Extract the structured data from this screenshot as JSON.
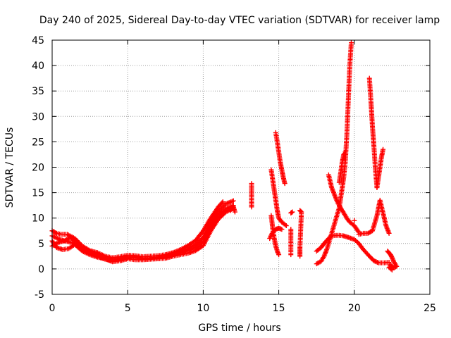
{
  "chart_data": {
    "type": "scatter",
    "title": "Day 240 of 2025, Sidereal Day-to-day VTEC variation (SDTVAR) for receiver lamp",
    "xlabel": "GPS time / hours",
    "ylabel": "SDTVAR / TECUs",
    "xlim": [
      0,
      25
    ],
    "ylim": [
      -5,
      45
    ],
    "xticks": [
      0,
      5,
      10,
      15,
      20,
      25
    ],
    "yticks": [
      -5,
      0,
      5,
      10,
      15,
      20,
      25,
      30,
      35,
      40,
      45
    ],
    "grid": true,
    "marker": "+",
    "series": [
      {
        "name": "SDTVAR",
        "color": "#ff0000",
        "segments": [
          [
            [
              0,
              7.5
            ],
            [
              0.3,
              7
            ],
            [
              0.6,
              6.8
            ],
            [
              1,
              6.8
            ],
            [
              1.5,
              6
            ],
            [
              2,
              4.5
            ],
            [
              2.5,
              3.6
            ],
            [
              3,
              3.2
            ],
            [
              3.5,
              2.5
            ],
            [
              4,
              2.2
            ],
            [
              4.5,
              2.4
            ],
            [
              5,
              2.7
            ],
            [
              5.5,
              2.6
            ],
            [
              6,
              2.4
            ],
            [
              6.5,
              2.5
            ],
            [
              7,
              2.6
            ],
            [
              7.5,
              2.8
            ],
            [
              8,
              3.2
            ],
            [
              8.5,
              3.8
            ],
            [
              9,
              4.6
            ],
            [
              9.5,
              5.6
            ],
            [
              10,
              7.5
            ],
            [
              10.5,
              10
            ],
            [
              11,
              12.2
            ],
            [
              11.3,
              13.2
            ]
          ],
          [
            [
              0,
              4.5
            ],
            [
              0.4,
              5.2
            ],
            [
              0.8,
              5.5
            ],
            [
              1.2,
              6.2
            ],
            [
              1.6,
              5.3
            ],
            [
              2,
              4
            ],
            [
              2.5,
              3.2
            ],
            [
              3,
              2.5
            ],
            [
              3.5,
              1.9
            ],
            [
              4,
              1.6
            ],
            [
              4.5,
              1.9
            ],
            [
              5,
              2.2
            ],
            [
              5.5,
              2.2
            ],
            [
              6,
              1.9
            ],
            [
              6.5,
              2
            ],
            [
              7,
              2.1
            ],
            [
              7.5,
              2.3
            ],
            [
              8,
              2.8
            ],
            [
              8.5,
              3.2
            ],
            [
              9,
              3.6
            ],
            [
              9.5,
              4.2
            ],
            [
              10,
              5.5
            ],
            [
              10.5,
              8.5
            ],
            [
              11,
              10.6
            ],
            [
              11.5,
              11.8
            ],
            [
              12,
              12.5
            ]
          ],
          [
            [
              0,
              5.5
            ],
            [
              0.3,
              4.2
            ],
            [
              0.7,
              3.8
            ],
            [
              1.1,
              4
            ],
            [
              1.5,
              4.8
            ],
            [
              2,
              3.5
            ],
            [
              2.5,
              2.8
            ],
            [
              3,
              2.3
            ],
            [
              3.5,
              2
            ],
            [
              4,
              1.4
            ],
            [
              4.5,
              1.6
            ],
            [
              5,
              2
            ],
            [
              5.5,
              1.8
            ],
            [
              6,
              1.8
            ],
            [
              6.5,
              1.9
            ],
            [
              7,
              2
            ],
            [
              7.5,
              2.1
            ],
            [
              8,
              2.5
            ],
            [
              8.5,
              2.8
            ],
            [
              9,
              3.1
            ],
            [
              9.5,
              3.6
            ],
            [
              10,
              4.6
            ],
            [
              10.5,
              7.5
            ],
            [
              11,
              9.8
            ],
            [
              11.5,
              11.2
            ],
            [
              12,
              12
            ]
          ],
          [
            [
              0,
              6.5
            ],
            [
              0.5,
              5.8
            ],
            [
              1,
              5.4
            ],
            [
              1.5,
              5
            ],
            [
              2,
              4.2
            ],
            [
              2.5,
              3.4
            ],
            [
              3,
              2.8
            ],
            [
              3.5,
              2.3
            ],
            [
              4,
              1.9
            ],
            [
              4.5,
              2.1
            ],
            [
              5,
              2.4
            ],
            [
              5.5,
              2.4
            ],
            [
              6,
              2.1
            ],
            [
              6.5,
              2.2
            ],
            [
              7,
              2.3
            ],
            [
              7.5,
              2.5
            ],
            [
              8,
              2.9
            ],
            [
              8.5,
              3.4
            ],
            [
              9,
              4
            ],
            [
              9.5,
              4.8
            ],
            [
              10,
              6.2
            ],
            [
              10.5,
              9
            ],
            [
              11,
              11.3
            ],
            [
              11.5,
              12.8
            ],
            [
              12,
              13.4
            ]
          ],
          [
            [
              11.8,
              11.5
            ],
            [
              12,
              12.2
            ],
            [
              12.1,
              11.2
            ]
          ],
          [
            [
              13.2,
              16.8
            ],
            [
              13.2,
              16.5
            ],
            [
              13.2,
              14.5
            ],
            [
              13.2,
              12.2
            ],
            [
              13.2,
              12.5
            ]
          ],
          [
            [
              14.5,
              19.5
            ],
            [
              14.6,
              17.5
            ],
            [
              14.7,
              15.5
            ],
            [
              14.8,
              13.5
            ],
            [
              14.9,
              11.5
            ],
            [
              15,
              10
            ],
            [
              15.2,
              9.2
            ],
            [
              15.5,
              8.5
            ]
          ],
          [
            [
              14.8,
              26.8
            ],
            [
              14.9,
              25
            ],
            [
              15,
              23
            ],
            [
              15.1,
              21
            ],
            [
              15.2,
              19.5
            ],
            [
              15.3,
              18
            ],
            [
              15.4,
              16.8
            ]
          ],
          [
            [
              14.5,
              10.5
            ],
            [
              14.6,
              8
            ],
            [
              14.7,
              6
            ],
            [
              14.8,
              4.5
            ],
            [
              14.9,
              3.5
            ],
            [
              15,
              2.8
            ]
          ],
          [
            [
              14.4,
              6
            ],
            [
              14.6,
              7.2
            ],
            [
              14.8,
              7.8
            ],
            [
              15,
              8
            ],
            [
              15.2,
              7.8
            ]
          ],
          [
            [
              15.8,
              11
            ],
            [
              15.9,
              11.2
            ]
          ],
          [
            [
              15.8,
              7.8
            ],
            [
              15.8,
              5.8
            ],
            [
              15.8,
              2.8
            ]
          ],
          [
            [
              16.4,
              11.5
            ],
            [
              16.5,
              11.2
            ],
            [
              16.4,
              4.2
            ],
            [
              16.4,
              3.2
            ],
            [
              16.4,
              2.5
            ]
          ],
          [
            [
              17.5,
              3.5
            ],
            [
              17.8,
              4.2
            ],
            [
              18,
              5
            ],
            [
              18.3,
              6
            ],
            [
              18.5,
              6.5
            ],
            [
              18.8,
              6.6
            ],
            [
              19,
              6.6
            ],
            [
              19.3,
              6.5
            ],
            [
              19.6,
              6.2
            ],
            [
              20,
              5.8
            ],
            [
              20.3,
              5
            ],
            [
              20.6,
              3.8
            ],
            [
              21,
              2.5
            ],
            [
              21.3,
              1.6
            ],
            [
              21.6,
              1.2
            ],
            [
              22,
              1.2
            ],
            [
              22.3,
              1.3
            ]
          ],
          [
            [
              17.5,
              1
            ],
            [
              17.8,
              1.5
            ],
            [
              18,
              2.5
            ],
            [
              18.2,
              4
            ],
            [
              18.4,
              6
            ],
            [
              18.6,
              8
            ],
            [
              18.8,
              10
            ],
            [
              19,
              12
            ],
            [
              19.1,
              14
            ],
            [
              19.2,
              16
            ],
            [
              19.3,
              18
            ],
            [
              19.4,
              21
            ],
            [
              19.5,
              26
            ],
            [
              19.6,
              33
            ],
            [
              19.7,
              40
            ],
            [
              19.8,
              44.5
            ]
          ],
          [
            [
              18.3,
              18.5
            ],
            [
              18.5,
              16
            ],
            [
              18.7,
              14.5
            ],
            [
              18.9,
              13
            ],
            [
              19.1,
              12
            ],
            [
              19.3,
              11
            ],
            [
              19.5,
              10
            ],
            [
              19.7,
              9.2
            ],
            [
              20,
              8.5
            ],
            [
              20.3,
              7.2
            ]
          ],
          [
            [
              19,
              17
            ],
            [
              19.1,
              19
            ],
            [
              19.2,
              21
            ],
            [
              19.3,
              22.5
            ],
            [
              19.4,
              23
            ]
          ],
          [
            [
              20.3,
              6.8
            ],
            [
              20.6,
              7
            ],
            [
              20.9,
              7
            ],
            [
              21.2,
              7.5
            ],
            [
              21.5,
              10.5
            ],
            [
              21.7,
              13.5
            ],
            [
              21.9,
              11
            ],
            [
              22.1,
              8.5
            ],
            [
              22.3,
              7
            ]
          ],
          [
            [
              21,
              37.5
            ],
            [
              21.1,
              33
            ],
            [
              21.2,
              28
            ],
            [
              21.3,
              24
            ],
            [
              21.4,
              19.5
            ],
            [
              21.5,
              16
            ]
          ],
          [
            [
              21.5,
              16
            ],
            [
              21.6,
              18
            ],
            [
              21.7,
              20
            ],
            [
              21.8,
              22
            ],
            [
              21.9,
              23.5
            ]
          ],
          [
            [
              22.2,
              3.5
            ],
            [
              22.4,
              2.8
            ],
            [
              22.5,
              2.2
            ],
            [
              22.6,
              1.5
            ],
            [
              22.7,
              1
            ],
            [
              22.8,
              0.5
            ],
            [
              22.6,
              0.2
            ],
            [
              22.4,
              0.8
            ],
            [
              22.3,
              0.3
            ],
            [
              22.5,
              -0.2
            ]
          ],
          [
            [
              20,
              9.5
            ]
          ]
        ]
      }
    ]
  }
}
